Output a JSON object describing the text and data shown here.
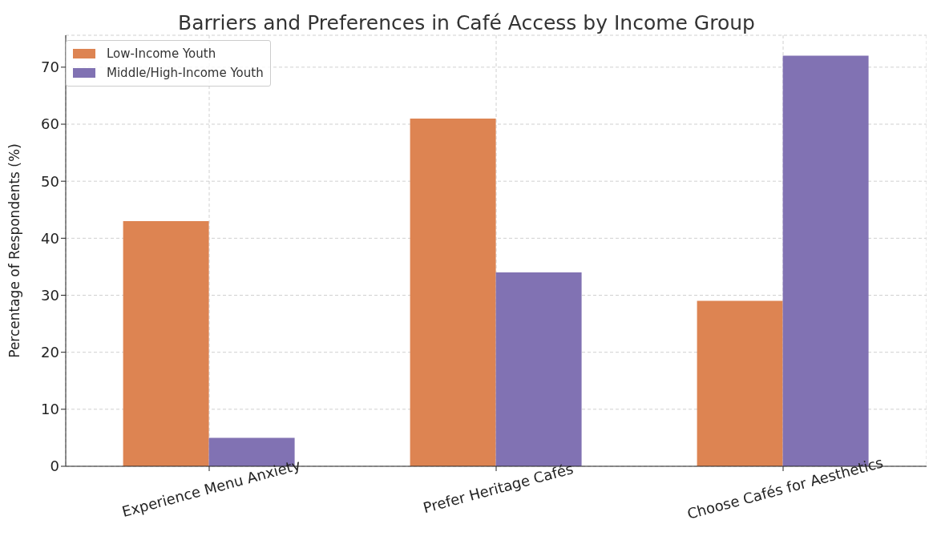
{
  "chart_data": {
    "type": "bar",
    "title": "Barriers and Preferences in Café Access by Income Group",
    "ylabel": "Percentage of Respondents (%)",
    "categories": [
      "Experience Menu Anxiety",
      "Prefer Heritage Cafés",
      "Choose Cafés for Aesthetics"
    ],
    "series": [
      {
        "name": "Low-Income Youth",
        "color": "#dd8452",
        "values": [
          43,
          61,
          29
        ]
      },
      {
        "name": "Middle/High-Income Youth",
        "color": "#8172b3",
        "values": [
          5,
          34,
          72
        ]
      }
    ],
    "ylim": [
      0,
      75.6
    ],
    "yticks": [
      0,
      10,
      20,
      30,
      40,
      50,
      60,
      70
    ],
    "grid": true,
    "legend": "top left"
  }
}
